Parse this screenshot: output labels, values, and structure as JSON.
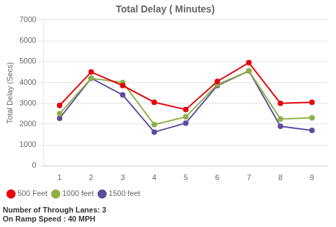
{
  "chart_data": {
    "type": "line",
    "title": "Total Delay ( Minutes)",
    "ylabel": "Total Delay (Secs)",
    "annotation": "Number of Through Lanes: 3\nOn Ramp Speed : 40 MPH",
    "x": [
      1,
      2,
      3,
      4,
      5,
      6,
      7,
      8,
      9
    ],
    "series": [
      {
        "name": "500 Feet",
        "color": "#e8000a",
        "values": [
          2900,
          4500,
          3850,
          3050,
          2700,
          4050,
          4950,
          3000,
          3050
        ]
      },
      {
        "name": "1000 feet",
        "color": "#8db147",
        "values": [
          2500,
          4200,
          4000,
          1980,
          2350,
          3900,
          4550,
          2250,
          2300
        ]
      },
      {
        "name": "1500 feet",
        "color": "#5c4d9e",
        "values": [
          2280,
          4200,
          3400,
          1620,
          2050,
          3850,
          4550,
          1900,
          1700
        ]
      }
    ],
    "xlim": [
      0.5,
      9.5
    ],
    "xticks": [
      1,
      2,
      3,
      4,
      5,
      6,
      7,
      8,
      9
    ],
    "ylim": [
      0,
      7000
    ],
    "yticks": [
      0,
      1000,
      2000,
      3000,
      4000,
      5000,
      6000,
      7000
    ],
    "grid": "y",
    "legend": "lower left",
    "marker": "circle"
  }
}
